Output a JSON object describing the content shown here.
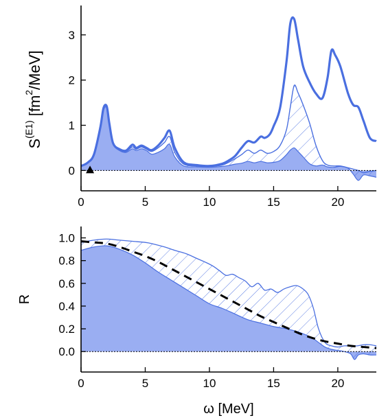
{
  "chart_data": [
    {
      "type": "line",
      "ylabel": {
        "base": "S",
        "superscript": "(E1)",
        "unit_open": "[fm",
        "unit_sup": "2",
        "unit_close": "/MeV]"
      },
      "xlim": [
        0,
        23
      ],
      "ylim": [
        -0.45,
        3.65
      ],
      "xticks": [
        0,
        5,
        10,
        15,
        20
      ],
      "yticks": [
        0,
        1,
        2,
        3
      ],
      "marker": {
        "shape": "triangle",
        "x": 0.7,
        "y": 0
      },
      "total": {
        "x": [
          0,
          0.5,
          1,
          1.5,
          1.75,
          2.0,
          2.2,
          2.5,
          3,
          3.5,
          4,
          4.3,
          4.7,
          5.1,
          5.5,
          6,
          6.5,
          6.9,
          7.3,
          8,
          9,
          10,
          11,
          11.5,
          12,
          12.5,
          13,
          13.5,
          14,
          14.3,
          14.7,
          15,
          15.5,
          16,
          16.3,
          16.6,
          16.9,
          17.3,
          17.8,
          18.3,
          18.8,
          19.2,
          19.5,
          19.8,
          20.2,
          20.8,
          21.2,
          21.6,
          22,
          22.5,
          23
        ],
        "y": [
          0.1,
          0.17,
          0.35,
          0.95,
          1.38,
          1.42,
          1.05,
          0.6,
          0.47,
          0.44,
          0.57,
          0.5,
          0.55,
          0.5,
          0.45,
          0.55,
          0.72,
          0.88,
          0.5,
          0.18,
          0.12,
          0.1,
          0.15,
          0.22,
          0.32,
          0.5,
          0.65,
          0.62,
          0.75,
          0.72,
          0.8,
          0.98,
          1.38,
          2.4,
          3.25,
          3.35,
          2.9,
          2.3,
          1.95,
          1.7,
          1.6,
          2.05,
          2.65,
          2.55,
          2.3,
          1.7,
          1.45,
          1.4,
          1.1,
          0.72,
          0.65
        ]
      },
      "middle": {
        "x": [
          0,
          0.5,
          1,
          1.5,
          1.75,
          2.0,
          2.2,
          2.5,
          3,
          3.5,
          4,
          4.3,
          4.7,
          5.1,
          5.5,
          6,
          6.5,
          6.9,
          7.3,
          8,
          9,
          10,
          11,
          11.5,
          12,
          12.5,
          13,
          13.5,
          14,
          14.5,
          15,
          15.5,
          16,
          16.3,
          16.6,
          16.9,
          17.3,
          17.8,
          18.3,
          18.8,
          19.2,
          19.7,
          20.2,
          20.8,
          21.2,
          21.6,
          22,
          22.5,
          23
        ],
        "y": [
          0.1,
          0.17,
          0.35,
          0.95,
          1.38,
          1.42,
          1.05,
          0.6,
          0.46,
          0.42,
          0.52,
          0.47,
          0.52,
          0.47,
          0.42,
          0.5,
          0.62,
          0.75,
          0.4,
          0.14,
          0.1,
          0.09,
          0.12,
          0.18,
          0.26,
          0.35,
          0.45,
          0.38,
          0.45,
          0.38,
          0.42,
          0.55,
          0.9,
          1.4,
          1.88,
          1.72,
          1.45,
          1.05,
          0.55,
          0.22,
          0.12,
          0.1,
          0.1,
          0.06,
          0.03,
          0.0,
          -0.05,
          -0.02,
          0.0
        ]
      },
      "lower": {
        "x": [
          0,
          0.5,
          1,
          1.5,
          1.75,
          2.0,
          2.2,
          2.5,
          3,
          3.5,
          4,
          4.3,
          4.7,
          5.1,
          5.5,
          6,
          6.5,
          6.9,
          7.3,
          8,
          9,
          10,
          11,
          11.5,
          12,
          12.5,
          13,
          13.5,
          14,
          14.5,
          15,
          15.5,
          16,
          16.3,
          16.6,
          16.9,
          17.3,
          17.8,
          18.3,
          18.8,
          19.2,
          19.7,
          20.2,
          20.8,
          21.2,
          21.6,
          22,
          22.5,
          23
        ],
        "y": [
          0.1,
          0.17,
          0.35,
          0.92,
          1.33,
          1.38,
          1.0,
          0.58,
          0.44,
          0.4,
          0.48,
          0.44,
          0.48,
          0.44,
          0.36,
          0.4,
          0.48,
          0.58,
          0.3,
          0.1,
          0.08,
          0.07,
          0.09,
          0.11,
          0.14,
          0.16,
          0.2,
          0.17,
          0.2,
          0.17,
          0.18,
          0.22,
          0.35,
          0.45,
          0.5,
          0.42,
          0.3,
          0.15,
          0.1,
          0.12,
          0.08,
          0.07,
          0.09,
          0.05,
          -0.08,
          -0.22,
          -0.1,
          -0.12,
          -0.15
        ]
      }
    },
    {
      "type": "area",
      "ylabel": "R",
      "xlabel": "ω [MeV]",
      "xlim": [
        0,
        23
      ],
      "ylim": [
        -0.18,
        1.1
      ],
      "xticks": [
        0,
        5,
        10,
        15,
        20
      ],
      "yticks": [
        0.0,
        0.2,
        0.4,
        0.6,
        0.8,
        1.0
      ],
      "upper": {
        "x": [
          0,
          1,
          2,
          3,
          4,
          5,
          5.5,
          6.5,
          7.3,
          8.2,
          9.0,
          9.8,
          10.3,
          10.8,
          11.3,
          11.8,
          12.3,
          12.8,
          13.3,
          13.8,
          14.3,
          14.8,
          15.3,
          15.8,
          16.3,
          16.8,
          17.3,
          17.7,
          18.1,
          18.5,
          19,
          19.5,
          20,
          20.5,
          21,
          21.5,
          22,
          22.5,
          23
        ],
        "y": [
          0.96,
          0.98,
          0.99,
          0.98,
          0.97,
          0.96,
          0.95,
          0.92,
          0.89,
          0.86,
          0.82,
          0.78,
          0.75,
          0.71,
          0.67,
          0.68,
          0.65,
          0.62,
          0.57,
          0.6,
          0.54,
          0.55,
          0.52,
          0.55,
          0.57,
          0.58,
          0.55,
          0.5,
          0.38,
          0.2,
          0.08,
          0.05,
          0.04,
          0.05,
          0.05,
          0.05,
          0.06,
          0.06,
          0.05
        ]
      },
      "lower": {
        "x": [
          0,
          1,
          2,
          3,
          4,
          5,
          6,
          7,
          8,
          9,
          10,
          11,
          12,
          13,
          14,
          15,
          16,
          17,
          18,
          18.5,
          19,
          19.5,
          20,
          20.5,
          21,
          21.3,
          21.6,
          22,
          22.5,
          23
        ],
        "y": [
          0.89,
          0.92,
          0.93,
          0.9,
          0.85,
          0.78,
          0.7,
          0.63,
          0.56,
          0.49,
          0.42,
          0.38,
          0.33,
          0.28,
          0.25,
          0.22,
          0.2,
          0.17,
          0.12,
          0.08,
          0.04,
          0.02,
          0.01,
          0.0,
          -0.02,
          -0.07,
          -0.03,
          -0.02,
          -0.03,
          -0.03
        ]
      },
      "fit": {
        "x": [
          0,
          1,
          2,
          3,
          4,
          5,
          6,
          7,
          8,
          9,
          10,
          11,
          12,
          13,
          14,
          15,
          16,
          17,
          18,
          19,
          20,
          21,
          22,
          23
        ],
        "y": [
          0.97,
          0.96,
          0.95,
          0.92,
          0.88,
          0.84,
          0.79,
          0.73,
          0.67,
          0.61,
          0.55,
          0.49,
          0.43,
          0.37,
          0.31,
          0.26,
          0.21,
          0.16,
          0.12,
          0.09,
          0.07,
          0.05,
          0.04,
          0.03
        ]
      }
    }
  ],
  "colors": {
    "fill": "#9aaef2",
    "line": "#4a6fe0",
    "fit": "#000000",
    "axis": "#000000"
  }
}
